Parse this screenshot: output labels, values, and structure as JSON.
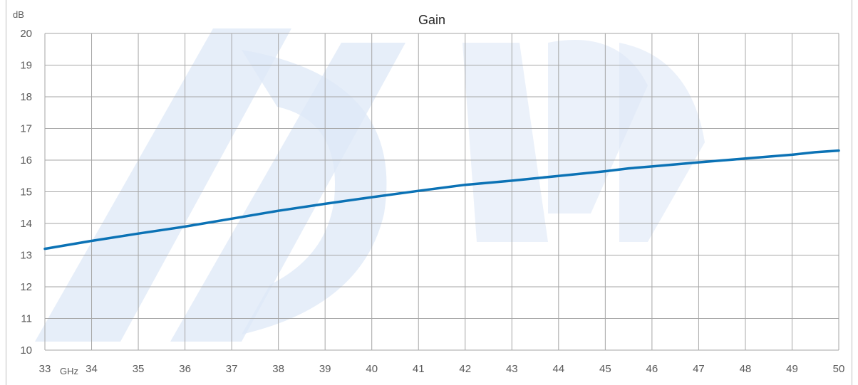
{
  "chart_data": {
    "type": "line",
    "title": "Gain",
    "ylabel_unit": "dB",
    "xlabel_unit": "GHz",
    "xlim": [
      33,
      50
    ],
    "ylim": [
      10,
      20
    ],
    "x_ticks": [
      33,
      34,
      35,
      36,
      37,
      38,
      39,
      40,
      41,
      42,
      43,
      44,
      45,
      46,
      47,
      48,
      49,
      50
    ],
    "y_ticks": [
      10,
      11,
      12,
      13,
      14,
      15,
      16,
      17,
      18,
      19,
      20
    ],
    "grid": true,
    "colors": {
      "line": "#0b72b5",
      "grid": "#a6a6a6",
      "watermark": "#dde8f7"
    },
    "series": [
      {
        "x": [
          33,
          34,
          35,
          36,
          37,
          38,
          39,
          40,
          41,
          42,
          43,
          44,
          45,
          45.5,
          46,
          47,
          48,
          49,
          49.5,
          50
        ],
        "values": [
          13.2,
          13.45,
          13.68,
          13.9,
          14.15,
          14.4,
          14.62,
          14.83,
          15.03,
          15.22,
          15.35,
          15.5,
          15.65,
          15.74,
          15.8,
          15.93,
          16.05,
          16.17,
          16.25,
          16.3
        ]
      }
    ]
  }
}
